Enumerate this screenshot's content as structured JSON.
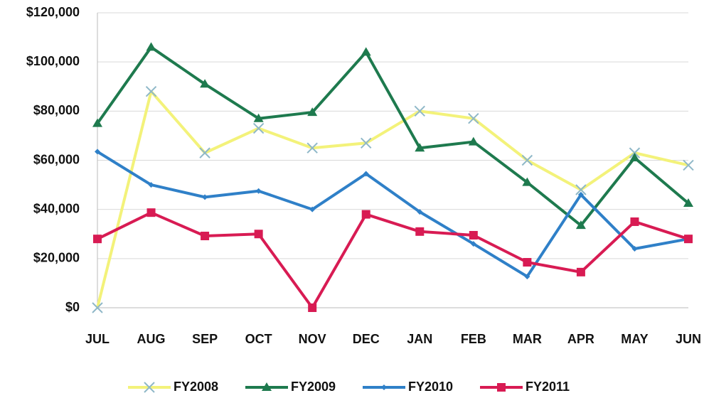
{
  "chart_data": {
    "type": "line",
    "categories": [
      "JUL",
      "AUG",
      "SEP",
      "OCT",
      "NOV",
      "DEC",
      "JAN",
      "FEB",
      "MAR",
      "APR",
      "MAY",
      "JUN"
    ],
    "series": [
      {
        "name": "FY2008",
        "color": "#f3f27a",
        "marker": "x",
        "values": [
          0,
          88000,
          63000,
          73000,
          65000,
          67000,
          80000,
          77000,
          60000,
          48000,
          63000,
          58000
        ]
      },
      {
        "name": "FY2009",
        "color": "#1e7a4e",
        "marker": "triangle",
        "values": [
          75000,
          106000,
          91000,
          77000,
          79500,
          104000,
          65000,
          67500,
          51000,
          33500,
          61000,
          42500
        ]
      },
      {
        "name": "FY2010",
        "color": "#2f80c8",
        "marker": "diamond",
        "values": [
          63500,
          50000,
          45000,
          47500,
          40000,
          54500,
          39000,
          26000,
          12700,
          46000,
          24000,
          28000
        ]
      },
      {
        "name": "FY2011",
        "color": "#d81b53",
        "marker": "square",
        "values": [
          28000,
          38700,
          29200,
          30000,
          0,
          38000,
          31000,
          29500,
          18500,
          14500,
          35000,
          28000
        ]
      }
    ],
    "ylim": [
      0,
      120000
    ],
    "yticks": [
      {
        "value": 0,
        "label": "$0"
      },
      {
        "value": 20000,
        "label": "$20,000"
      },
      {
        "value": 40000,
        "label": "$40,000"
      },
      {
        "value": 60000,
        "label": "$60,000"
      },
      {
        "value": 80000,
        "label": "$80,000"
      },
      {
        "value": 100000,
        "label": "$100,000"
      },
      {
        "value": 120000,
        "label": "$120,000"
      }
    ],
    "grid": true,
    "legend": "bottom"
  }
}
